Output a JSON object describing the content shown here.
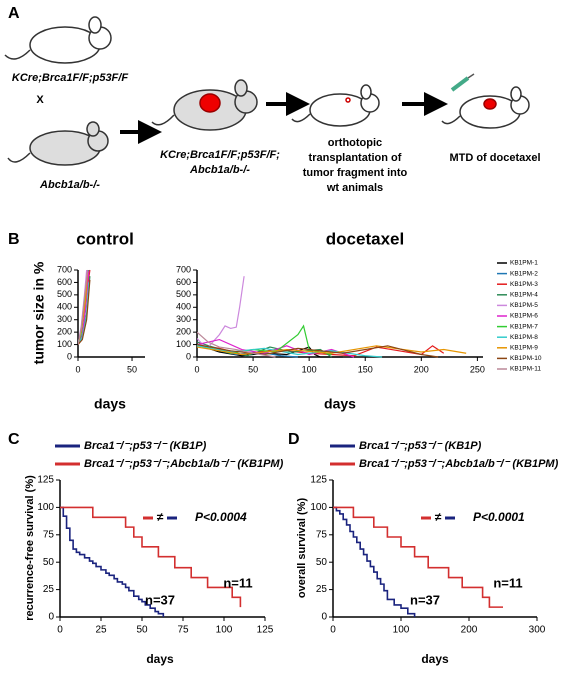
{
  "panel_labels": [
    "A",
    "B",
    "C",
    "D"
  ],
  "panel_a": {
    "parent1": "KCre;Brca1F/F;p53F/F",
    "cross": "X",
    "parent2": "Abcb1a/b-/-",
    "offspring": [
      "KCre;Brca1F/F;p53F/F;",
      "Abcb1a/b-/-"
    ],
    "transplant": [
      "orthotopic",
      "transplantation of",
      "tumor fragment into",
      "wt animals"
    ],
    "treatment": "MTD of docetaxel"
  },
  "chart_data": [
    {
      "type": "line",
      "title": "control",
      "ylabel": "tumor size in %",
      "xlabel": "days",
      "xlim": [
        0,
        62
      ],
      "xticks": [
        0,
        50
      ],
      "ylim": [
        0,
        700
      ],
      "yticks": [
        0,
        100,
        200,
        300,
        400,
        500,
        600,
        700
      ],
      "series": [
        {
          "color": "#000000",
          "x": [
            0,
            3,
            6,
            9
          ],
          "values": [
            100,
            200,
            420,
            700
          ]
        },
        {
          "color": "#1f77b4",
          "x": [
            0,
            4,
            7,
            10
          ],
          "values": [
            100,
            180,
            380,
            700
          ]
        },
        {
          "color": "#e41a1c",
          "x": [
            0,
            3,
            7,
            11
          ],
          "values": [
            100,
            220,
            450,
            700
          ]
        },
        {
          "color": "#2e8b57",
          "x": [
            0,
            4,
            8,
            11
          ],
          "values": [
            100,
            150,
            350,
            650
          ]
        },
        {
          "color": "#cc88dd",
          "x": [
            0,
            3,
            6,
            8
          ],
          "values": [
            100,
            250,
            500,
            700
          ]
        },
        {
          "color": "#dd22cc",
          "x": [
            0,
            4,
            7,
            10
          ],
          "values": [
            100,
            170,
            400,
            690
          ]
        },
        {
          "color": "#33cc33",
          "x": [
            0,
            3,
            6,
            9
          ],
          "values": [
            100,
            190,
            430,
            700
          ]
        },
        {
          "color": "#33cccc",
          "x": [
            0,
            4,
            8,
            10
          ],
          "values": [
            100,
            160,
            330,
            600
          ]
        },
        {
          "color": "#e69500",
          "x": [
            0,
            3,
            7,
            9
          ],
          "values": [
            100,
            210,
            460,
            700
          ]
        },
        {
          "color": "#8b4513",
          "x": [
            0,
            4,
            8,
            11
          ],
          "values": [
            100,
            140,
            300,
            620
          ]
        },
        {
          "color": "#bb8899",
          "x": [
            0,
            3,
            6,
            9
          ],
          "values": [
            100,
            230,
            480,
            700
          ]
        }
      ]
    },
    {
      "type": "line",
      "title": "docetaxel",
      "xlabel": "days",
      "xlim": [
        0,
        255
      ],
      "xticks": [
        0,
        50,
        100,
        150,
        200,
        250
      ],
      "ylim": [
        0,
        700
      ],
      "yticks": [
        0,
        100,
        200,
        300,
        400,
        500,
        600,
        700
      ],
      "legend": "right",
      "series": [
        {
          "name": "KB1PM-1",
          "color": "#000000",
          "x": [
            0,
            20,
            40,
            60,
            80,
            100,
            105,
            110,
            130
          ],
          "values": [
            100,
            40,
            10,
            30,
            20,
            80,
            20,
            0,
            0
          ]
        },
        {
          "name": "KB1PM-2",
          "color": "#1f77b4",
          "x": [
            0,
            15,
            35,
            55,
            75,
            90
          ],
          "values": [
            100,
            60,
            20,
            40,
            10,
            0
          ]
        },
        {
          "name": "KB1PM-3",
          "color": "#e41a1c",
          "x": [
            0,
            20,
            40,
            70,
            100,
            140,
            160,
            200,
            210,
            220
          ],
          "values": [
            100,
            70,
            20,
            60,
            30,
            10,
            80,
            20,
            90,
            30
          ]
        },
        {
          "name": "KB1PM-4",
          "color": "#2e8b57",
          "x": [
            0,
            25,
            45,
            65,
            85,
            110,
            120
          ],
          "values": [
            120,
            50,
            10,
            80,
            40,
            60,
            0
          ]
        },
        {
          "name": "KB1PM-5",
          "color": "#cc88dd",
          "x": [
            0,
            5,
            10,
            20,
            25,
            30,
            35,
            38,
            42
          ],
          "values": [
            150,
            100,
            80,
            180,
            250,
            230,
            240,
            400,
            650
          ]
        },
        {
          "name": "KB1PM-6",
          "color": "#dd22cc",
          "x": [
            0,
            20,
            40,
            60,
            80,
            100,
            120,
            140
          ],
          "values": [
            100,
            140,
            60,
            30,
            90,
            20,
            60,
            0
          ]
        },
        {
          "name": "KB1PM-7",
          "color": "#33cc33",
          "x": [
            0,
            30,
            50,
            70,
            90,
            95,
            100,
            120
          ],
          "values": [
            100,
            30,
            60,
            40,
            180,
            250,
            60,
            20
          ]
        },
        {
          "name": "KB1PM-8",
          "color": "#33cccc",
          "x": [
            0,
            30,
            60,
            90,
            120,
            150,
            165
          ],
          "values": [
            90,
            40,
            70,
            20,
            50,
            10,
            0
          ]
        },
        {
          "name": "KB1PM-9",
          "color": "#e69500",
          "x": [
            0,
            40,
            80,
            120,
            160,
            200,
            220,
            240
          ],
          "values": [
            80,
            20,
            60,
            30,
            90,
            40,
            60,
            30
          ]
        },
        {
          "name": "KB1PM-10",
          "color": "#8b4513",
          "x": [
            0,
            30,
            60,
            90,
            130,
            170,
            200,
            215
          ],
          "values": [
            100,
            50,
            20,
            70,
            30,
            90,
            20,
            0
          ]
        },
        {
          "name": "KB1PM-11",
          "color": "#bb8899",
          "x": [
            0,
            10,
            20,
            35,
            50,
            70
          ],
          "values": [
            200,
            120,
            80,
            60,
            30,
            0
          ]
        }
      ]
    },
    {
      "type": "step",
      "ylabel": "recurrence-free survival (%)",
      "xlabel": "days",
      "xlim": [
        0,
        125
      ],
      "xticks": [
        0,
        25,
        50,
        75,
        100,
        125
      ],
      "ylim": [
        0,
        125
      ],
      "yticks": [
        0,
        25,
        50,
        75,
        100,
        125
      ],
      "annotations": [
        "≠",
        "P<0.0004",
        "n=37",
        "n=11"
      ],
      "series": [
        {
          "name": "Brca1⁻/⁻;p53⁻/⁻ (KB1P)",
          "color": "#1a237e",
          "x": [
            0,
            2,
            4,
            6,
            8,
            10,
            12,
            15,
            18,
            20,
            22,
            25,
            28,
            30,
            33,
            35,
            38,
            40,
            42,
            45,
            48,
            50,
            52,
            55,
            58,
            60,
            63
          ],
          "values": [
            100,
            92,
            81,
            70,
            62,
            59,
            57,
            54,
            51,
            49,
            46,
            43,
            40,
            38,
            35,
            32,
            30,
            27,
            24,
            19,
            16,
            14,
            11,
            8,
            5,
            3,
            0
          ]
        },
        {
          "name": "Brca1⁻/⁻;p53⁻/⁻;Abcb1a/b⁻/⁻ (KB1PM)",
          "color": "#d32f2f",
          "x": [
            0,
            10,
            20,
            30,
            40,
            45,
            50,
            60,
            70,
            80,
            90,
            100,
            105,
            110
          ],
          "values": [
            100,
            100,
            91,
            91,
            82,
            73,
            64,
            55,
            45,
            36,
            27,
            27,
            18,
            9
          ]
        }
      ]
    },
    {
      "type": "step",
      "ylabel": "overall survival (%)",
      "xlabel": "days",
      "xlim": [
        0,
        300
      ],
      "xticks": [
        0,
        100,
        200,
        300
      ],
      "ylim": [
        0,
        125
      ],
      "yticks": [
        0,
        25,
        50,
        75,
        100,
        125
      ],
      "annotations": [
        "≠",
        "P<0.0001",
        "n=37",
        "n=11"
      ],
      "series": [
        {
          "name": "Brca1⁻/⁻;p53⁻/⁻ (KB1P)",
          "color": "#1a237e",
          "x": [
            0,
            5,
            10,
            15,
            20,
            25,
            30,
            35,
            40,
            45,
            50,
            55,
            60,
            65,
            70,
            75,
            80,
            90,
            100,
            110,
            120
          ],
          "values": [
            100,
            97,
            94,
            89,
            84,
            78,
            73,
            68,
            62,
            57,
            51,
            46,
            41,
            35,
            30,
            24,
            16,
            11,
            8,
            3,
            0
          ]
        },
        {
          "name": "Brca1⁻/⁻;p53⁻/⁻;Abcb1a/b⁻/⁻ (KB1PM)",
          "color": "#d32f2f",
          "x": [
            0,
            30,
            60,
            80,
            100,
            120,
            140,
            170,
            190,
            220,
            230,
            240,
            250
          ],
          "values": [
            100,
            91,
            82,
            73,
            64,
            55,
            45,
            36,
            27,
            18,
            9,
            9,
            9
          ]
        }
      ]
    }
  ]
}
